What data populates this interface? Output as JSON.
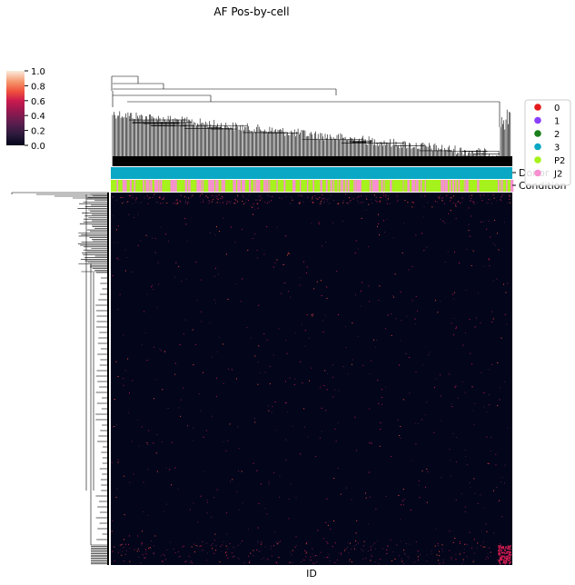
{
  "chart_data": {
    "type": "heatmap",
    "title": "AF Pos-by-cell",
    "xlabel": "ID",
    "ylabel": "",
    "colorbar": {
      "ticks": [
        "1.0",
        "0.8",
        "0.6",
        "0.4",
        "0.2",
        "0.0"
      ],
      "range": [
        0.0,
        1.0
      ],
      "colormap": "rocket"
    },
    "annotation_rows": [
      "Donor",
      "Condition"
    ],
    "legend": {
      "placement": "right",
      "entries": [
        {
          "label": "0",
          "color": "#e41a1c"
        },
        {
          "label": "1",
          "color": "#8a3ffc"
        },
        {
          "label": "2",
          "color": "#1a7f1a"
        },
        {
          "label": "3",
          "color": "#0aa8c4"
        },
        {
          "label": "P2",
          "color": "#a6f21c"
        },
        {
          "label": "J2",
          "color": "#f78fd1"
        }
      ]
    },
    "dendrograms": [
      "columns",
      "rows"
    ],
    "heatmap_background": "#03051a"
  }
}
